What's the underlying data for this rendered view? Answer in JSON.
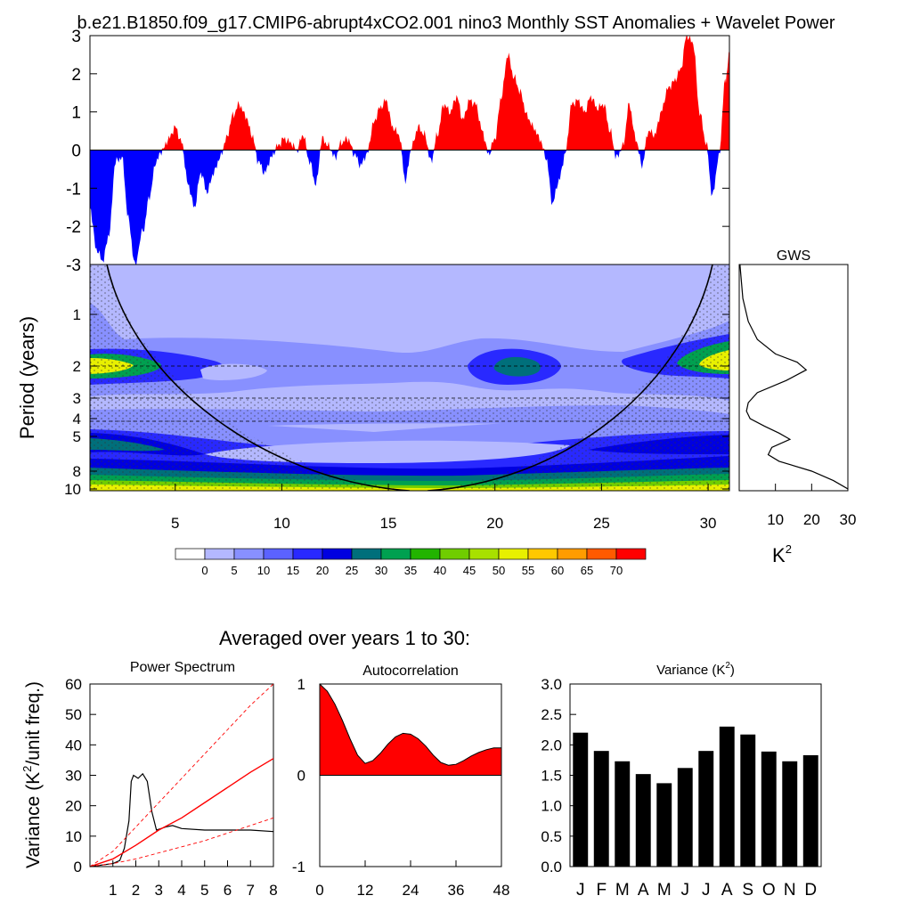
{
  "title": "b.e21.B1850.f09_g17.CMIP6-abrupt4xCO2.001 nino3 Monthly SST Anomalies + Wavelet Power",
  "colors": {
    "positive": "#ff0000",
    "negative": "#0000ff",
    "bar": "#000000",
    "curve": "#000000",
    "sig": "#ff0000"
  },
  "chart_data": [
    {
      "id": "sst",
      "type": "area",
      "title": "b.e21.B1850.f09_g17.CMIP6-abrupt4xCO2.001 nino3 Monthly SST Anomalies + Wavelet Power",
      "xlim": [
        1,
        31
      ],
      "ylim": [
        -3,
        3
      ],
      "yticks": [
        "-3",
        "-2",
        "-1",
        "0",
        "1",
        "2",
        "3"
      ],
      "ytick_values": [
        -3,
        -2,
        -1,
        0,
        1,
        2,
        3
      ],
      "x": [
        1,
        1.3,
        1.6,
        1.9,
        2.2,
        2.5,
        2.8,
        3.1,
        3.5,
        3.8,
        4.1,
        4.4,
        4.7,
        5.0,
        5.3,
        5.6,
        5.9,
        6.2,
        6.5,
        6.8,
        7.1,
        7.4,
        7.7,
        8.0,
        8.3,
        8.6,
        8.9,
        9.2,
        9.5,
        9.8,
        10.1,
        10.4,
        10.7,
        11.0,
        11.3,
        11.6,
        11.9,
        12.2,
        12.5,
        12.8,
        13.1,
        13.4,
        13.7,
        14.0,
        14.3,
        14.6,
        14.9,
        15.2,
        15.5,
        15.8,
        16.1,
        16.4,
        16.7,
        17.0,
        17.3,
        17.6,
        17.9,
        18.2,
        18.5,
        18.8,
        19.1,
        19.4,
        19.7,
        20.0,
        20.3,
        20.6,
        20.9,
        21.2,
        21.5,
        21.8,
        22.1,
        22.4,
        22.7,
        23.0,
        23.3,
        23.6,
        23.9,
        24.2,
        24.5,
        24.8,
        25.1,
        25.4,
        25.7,
        26.0,
        26.3,
        26.6,
        26.9,
        27.2,
        27.5,
        27.8,
        28.1,
        28.4,
        28.7,
        29.0,
        29.3,
        29.6,
        29.9,
        30.2,
        30.5,
        30.8,
        31.0
      ],
      "values": [
        -1.5,
        -2.6,
        -2.9,
        -2.2,
        -0.3,
        -0.2,
        -1.8,
        -3.0,
        -2.1,
        -1.2,
        -0.3,
        0.0,
        0.3,
        0.6,
        0.2,
        -0.9,
        -1.5,
        -0.6,
        -1.1,
        -0.6,
        -0.2,
        0.3,
        0.9,
        1.2,
        0.9,
        0.4,
        -0.3,
        -0.6,
        -0.2,
        0.1,
        0.3,
        0.2,
        0.0,
        0.4,
        -0.3,
        -0.9,
        0.3,
        0.1,
        -0.2,
        0.2,
        0.3,
        -0.1,
        -0.4,
        -0.1,
        0.7,
        1.1,
        1.3,
        0.6,
        0.4,
        -0.8,
        0.1,
        0.6,
        0.4,
        -0.3,
        0.4,
        1.2,
        1.0,
        1.4,
        0.8,
        1.3,
        1.2,
        0.5,
        -0.1,
        0.3,
        1.4,
        2.5,
        1.9,
        1.5,
        0.9,
        0.6,
        0.3,
        -0.2,
        -1.4,
        -0.8,
        -0.1,
        1.2,
        1.3,
        1.0,
        1.4,
        1.1,
        1.2,
        0.5,
        -0.2,
        0.1,
        1.2,
        0.3,
        -0.4,
        0.5,
        0.4,
        1.0,
        1.6,
        1.8,
        2.1,
        3.0,
        2.8,
        1.0,
        0.2,
        -1.2,
        -0.2,
        1.8,
        2.5
      ]
    },
    {
      "id": "wavelet",
      "type": "heatmap",
      "ylabel": "Period (years)",
      "xlim": [
        1,
        31
      ],
      "xticks": [
        "5",
        "10",
        "15",
        "20",
        "25",
        "30"
      ],
      "xtick_values": [
        5,
        10,
        15,
        20,
        25,
        30
      ],
      "yticks": [
        "1",
        "2",
        "3",
        "4",
        "5",
        "8",
        "10"
      ],
      "ytick_values": [
        1,
        2,
        3,
        4,
        5,
        8,
        10
      ],
      "colorbar_labels": [
        "0",
        "5",
        "10",
        "15",
        "20",
        "25",
        "30",
        "35",
        "40",
        "45",
        "50",
        "55",
        "60",
        "65",
        "70"
      ],
      "colorbar_colors": [
        "#ffffff",
        "#b4b8ff",
        "#8890ff",
        "#5b62ff",
        "#2929ff",
        "#0000e0",
        "#006f7b",
        "#00a050",
        "#22b400",
        "#70cd00",
        "#a8e000",
        "#e8f000",
        "#ffc800",
        "#ff9c00",
        "#ff5a00",
        "#ff0000"
      ]
    },
    {
      "id": "gws",
      "type": "line",
      "title": "GWS",
      "xlabel": "K",
      "xlabel_sup": "2",
      "xticks": [
        "10",
        "20",
        "30"
      ],
      "xtick_values": [
        10,
        20,
        30
      ],
      "xlim": [
        0,
        30
      ],
      "period": [
        0.5,
        0.8,
        1.1,
        1.4,
        1.7,
        1.9,
        2.1,
        2.4,
        2.8,
        3.2,
        3.6,
        4.0,
        4.4,
        4.8,
        5.2,
        5.8,
        6.4,
        7.0,
        8.0,
        9.0,
        10.0
      ],
      "values": [
        0.2,
        1.0,
        2.5,
        5.0,
        10.0,
        16.0,
        18.5,
        13.0,
        5.0,
        2.5,
        2.0,
        3.0,
        7.0,
        11.0,
        14.0,
        9.0,
        8.0,
        11.0,
        20.0,
        26.0,
        30.0
      ]
    },
    {
      "id": "spectrum",
      "type": "line",
      "header": "Averaged over years 1 to 30:",
      "title": "Power Spectrum",
      "ylabel": "Variance (K",
      "ylabel_sup": "2",
      "ylabel_end": "/unit freq.)",
      "xlim": [
        0,
        8
      ],
      "ylim": [
        0,
        60
      ],
      "xticks": [
        "1",
        "2",
        "3",
        "4",
        "5",
        "6",
        "7",
        "8"
      ],
      "xtick_values": [
        1,
        2,
        3,
        4,
        5,
        6,
        7,
        8
      ],
      "yticks": [
        "0",
        "10",
        "20",
        "30",
        "40",
        "50",
        "60"
      ],
      "ytick_values": [
        0,
        10,
        20,
        30,
        40,
        50,
        60
      ],
      "series": [
        {
          "name": "spectrum",
          "x": [
            0,
            0.5,
            1.0,
            1.3,
            1.5,
            1.7,
            1.8,
            1.9,
            2.1,
            2.3,
            2.5,
            2.7,
            2.9,
            3.1,
            3.3,
            3.6,
            4.0,
            5.0,
            6.0,
            7.0,
            8.0
          ],
          "values": [
            0,
            0.5,
            1.0,
            2.0,
            6.0,
            15.0,
            28.0,
            30.0,
            29.0,
            30.5,
            28.0,
            18.0,
            12.0,
            12.5,
            13.0,
            13.5,
            12.5,
            12.0,
            12.0,
            12.0,
            11.5
          ]
        },
        {
          "name": "red-noise",
          "x": [
            0,
            1,
            2,
            3,
            4,
            5,
            6,
            7,
            8
          ],
          "values": [
            0,
            2.5,
            7,
            12,
            16,
            21,
            26,
            31,
            35.5
          ]
        },
        {
          "name": "upper-bound",
          "x": [
            0,
            1,
            2,
            3,
            4,
            5,
            6,
            7,
            8
          ],
          "values": [
            0,
            5,
            13,
            21,
            29,
            37,
            45,
            53,
            61
          ]
        },
        {
          "name": "lower-bound",
          "x": [
            0,
            1,
            2,
            3,
            4,
            5,
            6,
            7,
            8
          ],
          "values": [
            0,
            1,
            2.5,
            4.5,
            6.5,
            8.5,
            11,
            13.5,
            16
          ]
        }
      ]
    },
    {
      "id": "autocorr",
      "type": "area",
      "title": "Autocorrelation",
      "xlim": [
        0,
        48
      ],
      "ylim": [
        -1,
        1
      ],
      "xticks": [
        "0",
        "12",
        "24",
        "36",
        "48"
      ],
      "xtick_values": [
        0,
        12,
        24,
        36,
        48
      ],
      "yticks": [
        "-1",
        "0",
        "1"
      ],
      "ytick_values": [
        -1,
        0,
        1
      ],
      "x": [
        0,
        2,
        4,
        6,
        8,
        10,
        12,
        14,
        16,
        18,
        20,
        22,
        24,
        26,
        28,
        30,
        32,
        34,
        36,
        38,
        40,
        42,
        44,
        46,
        48
      ],
      "values": [
        1.0,
        0.92,
        0.78,
        0.6,
        0.4,
        0.22,
        0.13,
        0.16,
        0.24,
        0.34,
        0.42,
        0.46,
        0.45,
        0.4,
        0.32,
        0.22,
        0.14,
        0.11,
        0.12,
        0.16,
        0.21,
        0.25,
        0.28,
        0.3,
        0.3
      ]
    },
    {
      "id": "variance",
      "type": "bar",
      "title": "Variance (K",
      "title_sup": "2",
      "title_end": ")",
      "categories": [
        "J",
        "F",
        "M",
        "A",
        "M",
        "J",
        "J",
        "A",
        "S",
        "O",
        "N",
        "D"
      ],
      "values": [
        2.2,
        1.9,
        1.73,
        1.52,
        1.37,
        1.62,
        1.9,
        2.3,
        2.17,
        1.89,
        1.73,
        1.83
      ],
      "ylim": [
        0,
        3
      ],
      "yticks": [
        "0.0",
        "0.5",
        "1.0",
        "1.5",
        "2.0",
        "2.5",
        "3.0"
      ],
      "ytick_values": [
        0,
        0.5,
        1.0,
        1.5,
        2.0,
        2.5,
        3.0
      ]
    }
  ]
}
